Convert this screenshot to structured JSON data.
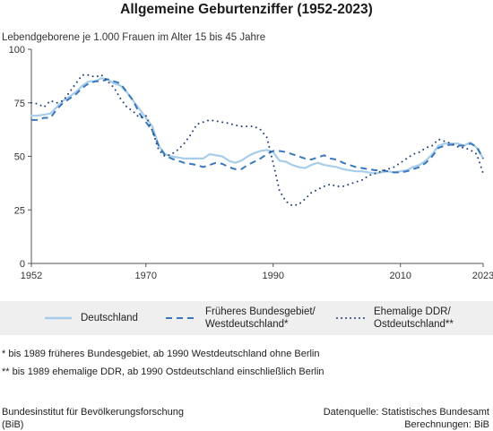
{
  "title": "Allgemeine Geburtenziffer (1952-2023)",
  "subtitle": "Lebendgeborene je 1.000 Frauen im Alter 15 bis 45 Jahre",
  "legend": {
    "series0_line1": "Deutschland",
    "series0_line2": "",
    "series1_line1": "Früheres Bundesgebiet/",
    "series1_line2": "Westdeutschland*",
    "series2_line1": "Ehemalige DDR/",
    "series2_line2": "Ostdeutschland**"
  },
  "notes": {
    "note1": "*   bis 1989 früheres Bundesgebiet, ab 1990 Westdeutschland ohne Berlin",
    "note2": "** bis 1989 ehemalige DDR, ab 1990 Ostdeutschland einschließlich Berlin"
  },
  "footer": {
    "left_line1": "Bundesinstitut für Bevölkerungsforschung",
    "left_line2": "(BiB)",
    "right_line1": "Datenquelle: Statistisches Bundesamt",
    "right_line2": "Berechnungen: BiB"
  },
  "colors": {
    "deutschland": "#a8cdea",
    "west": "#3a78bd",
    "ost": "#1f3f73",
    "axis": "#555555"
  },
  "chart_data": {
    "type": "line",
    "title": "Allgemeine Geburtenziffer (1952-2023)",
    "ylabel": "Lebendgeborene je 1.000 Frauen im Alter 15 bis 45 Jahre",
    "xlabel": "",
    "xlim": [
      1952,
      2023
    ],
    "ylim": [
      0,
      100
    ],
    "x_ticks": [
      1952,
      1970,
      1990,
      2010,
      2023
    ],
    "y_ticks": [
      0,
      25,
      50,
      75,
      100
    ],
    "grid": false,
    "legend_position": "bottom",
    "series": [
      {
        "name": "Deutschland",
        "style": "solid",
        "x": [
          1952,
          1953,
          1954,
          1955,
          1956,
          1957,
          1958,
          1959,
          1960,
          1961,
          1962,
          1963,
          1964,
          1965,
          1966,
          1967,
          1968,
          1969,
          1970,
          1971,
          1972,
          1973,
          1974,
          1975,
          1976,
          1977,
          1978,
          1979,
          1980,
          1981,
          1982,
          1983,
          1984,
          1985,
          1986,
          1987,
          1988,
          1989,
          1990,
          1991,
          1992,
          1993,
          1994,
          1995,
          1996,
          1997,
          1998,
          1999,
          2000,
          2001,
          2002,
          2003,
          2004,
          2005,
          2006,
          2007,
          2008,
          2009,
          2010,
          2011,
          2012,
          2013,
          2014,
          2015,
          2016,
          2017,
          2018,
          2019,
          2020,
          2021,
          2022,
          2023
        ],
        "y": [
          69,
          69,
          69.5,
          70,
          73,
          76,
          78,
          80,
          83,
          85,
          85,
          86.5,
          86,
          84,
          83,
          80,
          76,
          72,
          68,
          64,
          55,
          51,
          50,
          49.5,
          49,
          49,
          49,
          49,
          51,
          50.5,
          50,
          48,
          47,
          48,
          50,
          51.5,
          52.5,
          53,
          52,
          48,
          47.5,
          46,
          45,
          44.5,
          46,
          47,
          46,
          45.5,
          45,
          44,
          43.5,
          43,
          43,
          42.5,
          42,
          42.5,
          43,
          42.5,
          43,
          43.5,
          45,
          46,
          48,
          51,
          55,
          56,
          56,
          56,
          55,
          56.5,
          54,
          49
        ]
      },
      {
        "name": "Früheres Bundesgebiet/Westdeutschland*",
        "style": "dashed",
        "x": [
          1952,
          1953,
          1954,
          1955,
          1956,
          1957,
          1958,
          1959,
          1960,
          1961,
          1962,
          1963,
          1964,
          1965,
          1966,
          1967,
          1968,
          1969,
          1970,
          1971,
          1972,
          1973,
          1974,
          1975,
          1976,
          1977,
          1978,
          1979,
          1980,
          1981,
          1982,
          1983,
          1984,
          1985,
          1986,
          1987,
          1988,
          1989,
          1990,
          1991,
          1992,
          1993,
          1994,
          1995,
          1996,
          1997,
          1998,
          1999,
          2000,
          2001,
          2002,
          2003,
          2004,
          2005,
          2006,
          2007,
          2008,
          2009,
          2010,
          2011,
          2012,
          2013,
          2014,
          2015,
          2016,
          2017,
          2018,
          2019,
          2020,
          2021,
          2022,
          2023
        ],
        "y": [
          67,
          67,
          68,
          68,
          72,
          75,
          77,
          79,
          82,
          84,
          85,
          85,
          86,
          85,
          84,
          80,
          76,
          70,
          66,
          62,
          55,
          50.5,
          49,
          48,
          47,
          46.5,
          46,
          45,
          46,
          47,
          46.5,
          45,
          44,
          44,
          46,
          47.5,
          49,
          51,
          52.5,
          52.5,
          52,
          51,
          50,
          49,
          48.5,
          49.5,
          50.5,
          49,
          48.5,
          47,
          46,
          45,
          44.5,
          44,
          43.5,
          43.5,
          43,
          42.5,
          42.5,
          43,
          44,
          45,
          47,
          50,
          54,
          55,
          55.5,
          55,
          55,
          56,
          54.5,
          49
        ]
      },
      {
        "name": "Ehemalige DDR/Ostdeutschland**",
        "style": "dotted",
        "x": [
          1952,
          1953,
          1954,
          1955,
          1956,
          1957,
          1958,
          1959,
          1960,
          1961,
          1962,
          1963,
          1964,
          1965,
          1966,
          1967,
          1968,
          1969,
          1970,
          1971,
          1972,
          1973,
          1974,
          1975,
          1976,
          1977,
          1978,
          1979,
          1980,
          1981,
          1982,
          1983,
          1984,
          1985,
          1986,
          1987,
          1988,
          1989,
          1990,
          1991,
          1992,
          1993,
          1994,
          1995,
          1996,
          1997,
          1998,
          1999,
          2000,
          2001,
          2002,
          2003,
          2004,
          2005,
          2006,
          2007,
          2008,
          2009,
          2010,
          2011,
          2012,
          2013,
          2014,
          2015,
          2016,
          2017,
          2018,
          2019,
          2020,
          2021,
          2022,
          2023
        ],
        "y": [
          75,
          74.5,
          73,
          76,
          75,
          76,
          80,
          84,
          88,
          88,
          87,
          88,
          85,
          82,
          77,
          73,
          71,
          68,
          69,
          62,
          53,
          50,
          51,
          53,
          56,
          60,
          65,
          66,
          67,
          66.5,
          66,
          65.5,
          64.5,
          64,
          64,
          64,
          62.5,
          59,
          47,
          34,
          29,
          27,
          27.5,
          30,
          33,
          34.5,
          36,
          37,
          36,
          36,
          37,
          38,
          39,
          41,
          42,
          43,
          44,
          45,
          47,
          49,
          51,
          52,
          54,
          55,
          58,
          57,
          56,
          54.5,
          54,
          53,
          51,
          42
        ]
      }
    ]
  }
}
